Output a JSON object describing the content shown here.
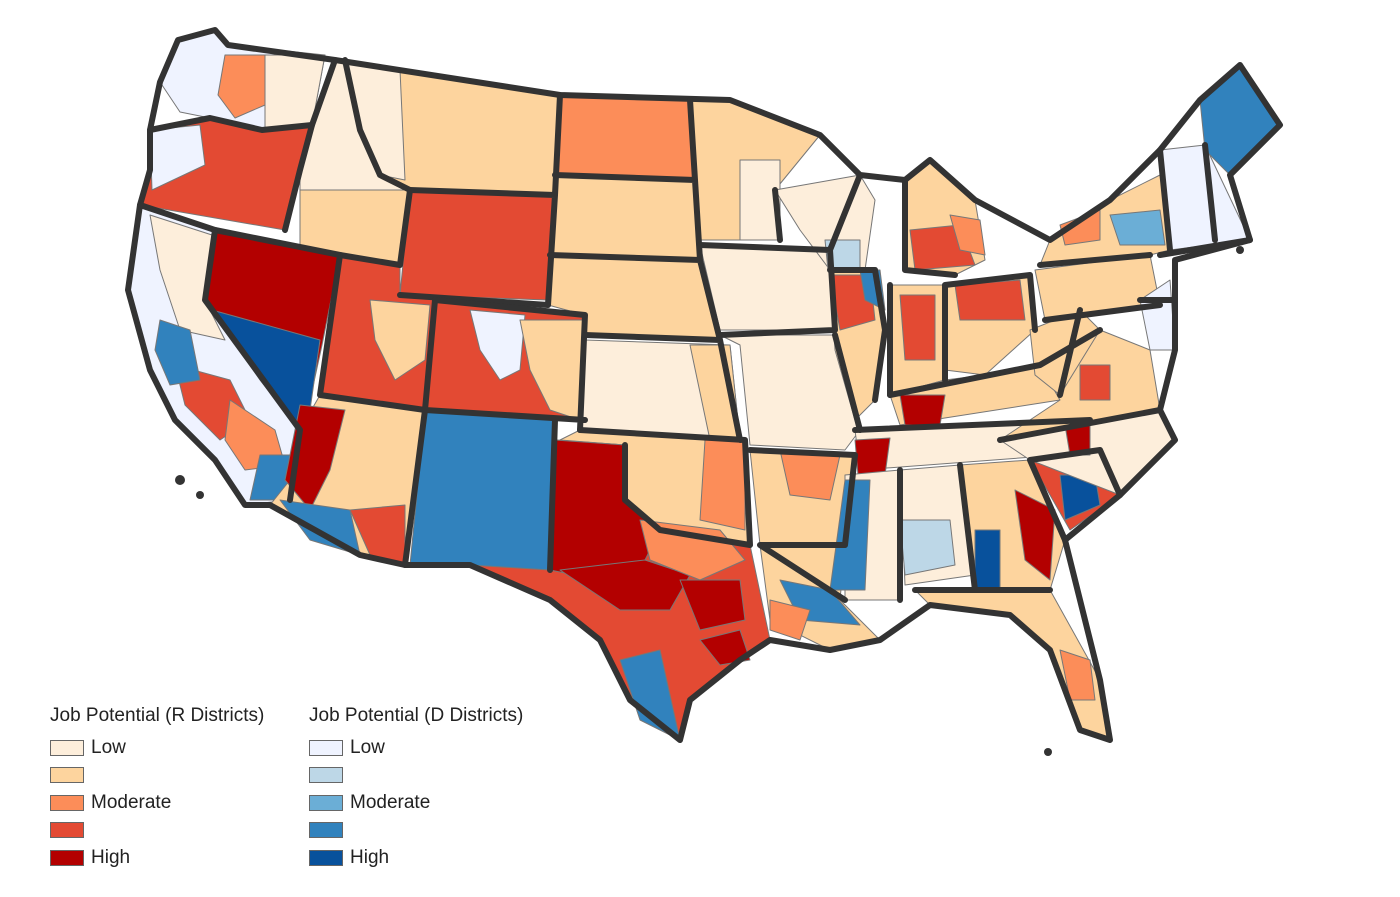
{
  "legend_r": {
    "title": "Job Potential (R Districts)",
    "items": [
      {
        "label": "Low",
        "color": "#fdeedb"
      },
      {
        "label": "",
        "color": "#fdd49e"
      },
      {
        "label": "Moderate",
        "color": "#fc8d59"
      },
      {
        "label": "",
        "color": "#e34a33"
      },
      {
        "label": "High",
        "color": "#b30000"
      }
    ]
  },
  "legend_d": {
    "title": "Job Potential (D Districts)",
    "items": [
      {
        "label": "Low",
        "color": "#eff3ff"
      },
      {
        "label": "",
        "color": "#bdd7e7"
      },
      {
        "label": "Moderate",
        "color": "#6baed6"
      },
      {
        "label": "",
        "color": "#3182bd"
      },
      {
        "label": "High",
        "color": "#08519c"
      }
    ]
  },
  "map": {
    "border_color": "#333333",
    "district_line_color": "#777777"
  }
}
